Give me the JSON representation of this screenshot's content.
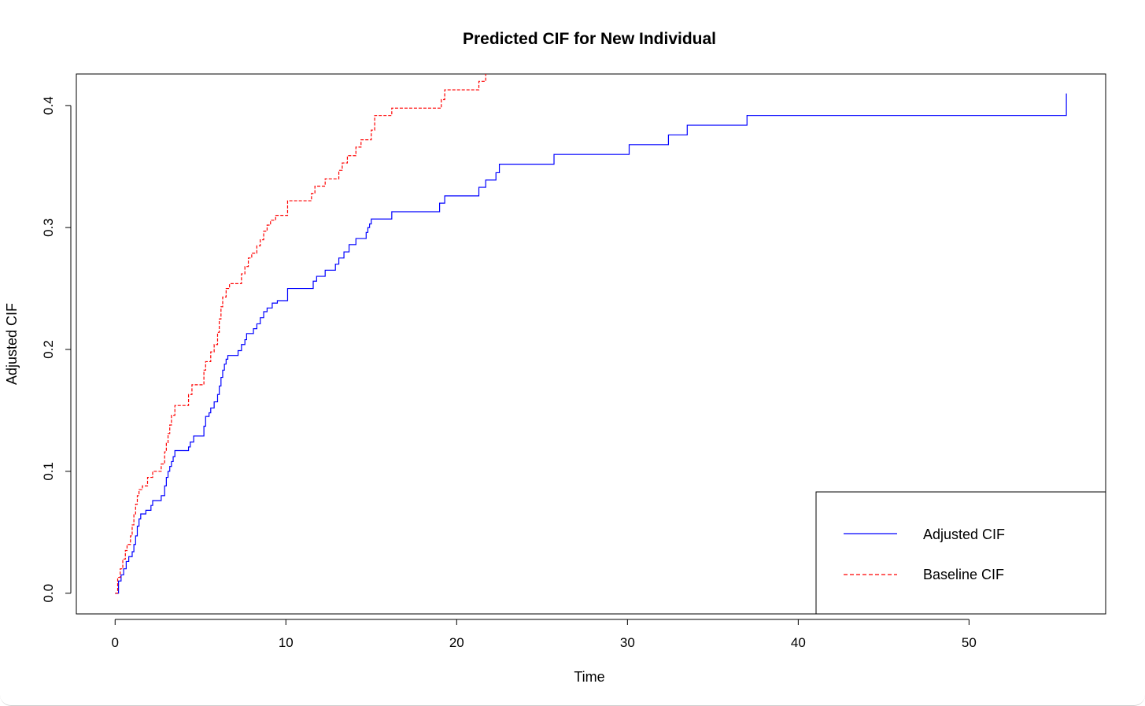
{
  "chart_data": {
    "type": "line",
    "step": true,
    "title": "Predicted CIF for New Individual",
    "xlabel": "Time",
    "ylabel": "Adjusted CIF",
    "xlim": [
      -2.27,
      58.0
    ],
    "ylim": [
      -0.017,
      0.426
    ],
    "xticks": [
      0,
      10,
      20,
      30,
      40,
      50
    ],
    "xtick_labels": [
      "0",
      "10",
      "20",
      "30",
      "40",
      "50"
    ],
    "yticks": [
      0.0,
      0.1,
      0.2,
      0.3,
      0.4
    ],
    "ytick_labels": [
      "0.0",
      "0.1",
      "0.2",
      "0.3",
      "0.4"
    ],
    "grid": false,
    "legend_position": "bottom-right",
    "series": [
      {
        "name": "Adjusted CIF",
        "color": "#0000ff",
        "dash": "solid",
        "points": [
          [
            0,
            0
          ],
          [
            0.2,
            0.01
          ],
          [
            0.35,
            0.015
          ],
          [
            0.5,
            0.02
          ],
          [
            0.65,
            0.026
          ],
          [
            0.8,
            0.03
          ],
          [
            1.0,
            0.034
          ],
          [
            1.1,
            0.04
          ],
          [
            1.2,
            0.047
          ],
          [
            1.3,
            0.055
          ],
          [
            1.4,
            0.061
          ],
          [
            1.5,
            0.065
          ],
          [
            1.8,
            0.068
          ],
          [
            2.1,
            0.072
          ],
          [
            2.2,
            0.076
          ],
          [
            2.7,
            0.08
          ],
          [
            2.9,
            0.088
          ],
          [
            3.0,
            0.095
          ],
          [
            3.1,
            0.1
          ],
          [
            3.2,
            0.104
          ],
          [
            3.3,
            0.108
          ],
          [
            3.4,
            0.112
          ],
          [
            3.5,
            0.117
          ],
          [
            4.3,
            0.12
          ],
          [
            4.4,
            0.124
          ],
          [
            4.6,
            0.129
          ],
          [
            5.2,
            0.137
          ],
          [
            5.3,
            0.145
          ],
          [
            5.5,
            0.148
          ],
          [
            5.6,
            0.152
          ],
          [
            5.8,
            0.157
          ],
          [
            6.0,
            0.163
          ],
          [
            6.1,
            0.17
          ],
          [
            6.2,
            0.177
          ],
          [
            6.3,
            0.183
          ],
          [
            6.4,
            0.188
          ],
          [
            6.5,
            0.192
          ],
          [
            6.6,
            0.195
          ],
          [
            7.2,
            0.199
          ],
          [
            7.4,
            0.204
          ],
          [
            7.6,
            0.208
          ],
          [
            7.7,
            0.213
          ],
          [
            8.1,
            0.217
          ],
          [
            8.3,
            0.221
          ],
          [
            8.5,
            0.226
          ],
          [
            8.7,
            0.231
          ],
          [
            8.9,
            0.234
          ],
          [
            9.2,
            0.238
          ],
          [
            9.5,
            0.24
          ],
          [
            10.1,
            0.25
          ],
          [
            11.6,
            0.256
          ],
          [
            11.8,
            0.26
          ],
          [
            12.3,
            0.265
          ],
          [
            12.9,
            0.27
          ],
          [
            13.1,
            0.275
          ],
          [
            13.4,
            0.28
          ],
          [
            13.7,
            0.286
          ],
          [
            14.1,
            0.291
          ],
          [
            14.7,
            0.296
          ],
          [
            14.8,
            0.3
          ],
          [
            14.9,
            0.303
          ],
          [
            15.0,
            0.307
          ],
          [
            16.2,
            0.313
          ],
          [
            19.0,
            0.32
          ],
          [
            19.3,
            0.326
          ],
          [
            21.3,
            0.333
          ],
          [
            21.7,
            0.339
          ],
          [
            22.3,
            0.345
          ],
          [
            22.5,
            0.352
          ],
          [
            25.7,
            0.36
          ],
          [
            30.1,
            0.368
          ],
          [
            32.4,
            0.376
          ],
          [
            33.5,
            0.384
          ],
          [
            37.0,
            0.392
          ],
          [
            55.7,
            0.41
          ]
        ]
      },
      {
        "name": "Baseline CIF",
        "color": "#ff0000",
        "dash": "dashed",
        "points": [
          [
            0,
            0
          ],
          [
            0.15,
            0.013
          ],
          [
            0.3,
            0.02
          ],
          [
            0.45,
            0.028
          ],
          [
            0.6,
            0.035
          ],
          [
            0.7,
            0.04
          ],
          [
            0.9,
            0.047
          ],
          [
            1.0,
            0.056
          ],
          [
            1.1,
            0.065
          ],
          [
            1.2,
            0.073
          ],
          [
            1.3,
            0.08
          ],
          [
            1.4,
            0.085
          ],
          [
            1.6,
            0.088
          ],
          [
            1.9,
            0.095
          ],
          [
            2.2,
            0.1
          ],
          [
            2.7,
            0.106
          ],
          [
            2.9,
            0.116
          ],
          [
            3.0,
            0.123
          ],
          [
            3.1,
            0.131
          ],
          [
            3.2,
            0.138
          ],
          [
            3.3,
            0.146
          ],
          [
            3.5,
            0.154
          ],
          [
            4.3,
            0.163
          ],
          [
            4.5,
            0.171
          ],
          [
            5.2,
            0.183
          ],
          [
            5.3,
            0.19
          ],
          [
            5.6,
            0.198
          ],
          [
            5.8,
            0.204
          ],
          [
            6.0,
            0.214
          ],
          [
            6.1,
            0.225
          ],
          [
            6.2,
            0.235
          ],
          [
            6.3,
            0.243
          ],
          [
            6.5,
            0.25
          ],
          [
            6.7,
            0.254
          ],
          [
            7.4,
            0.262
          ],
          [
            7.6,
            0.268
          ],
          [
            7.8,
            0.275
          ],
          [
            8.0,
            0.279
          ],
          [
            8.3,
            0.285
          ],
          [
            8.5,
            0.29
          ],
          [
            8.7,
            0.297
          ],
          [
            8.9,
            0.302
          ],
          [
            9.1,
            0.306
          ],
          [
            9.4,
            0.31
          ],
          [
            10.1,
            0.322
          ],
          [
            11.5,
            0.328
          ],
          [
            11.7,
            0.334
          ],
          [
            12.3,
            0.34
          ],
          [
            13.1,
            0.347
          ],
          [
            13.3,
            0.353
          ],
          [
            13.6,
            0.359
          ],
          [
            14.1,
            0.366
          ],
          [
            14.4,
            0.372
          ],
          [
            15.0,
            0.38
          ],
          [
            15.2,
            0.392
          ],
          [
            16.2,
            0.398
          ],
          [
            19.1,
            0.405
          ],
          [
            19.3,
            0.413
          ],
          [
            21.3,
            0.42
          ],
          [
            21.7,
            0.428
          ]
        ]
      }
    ]
  }
}
